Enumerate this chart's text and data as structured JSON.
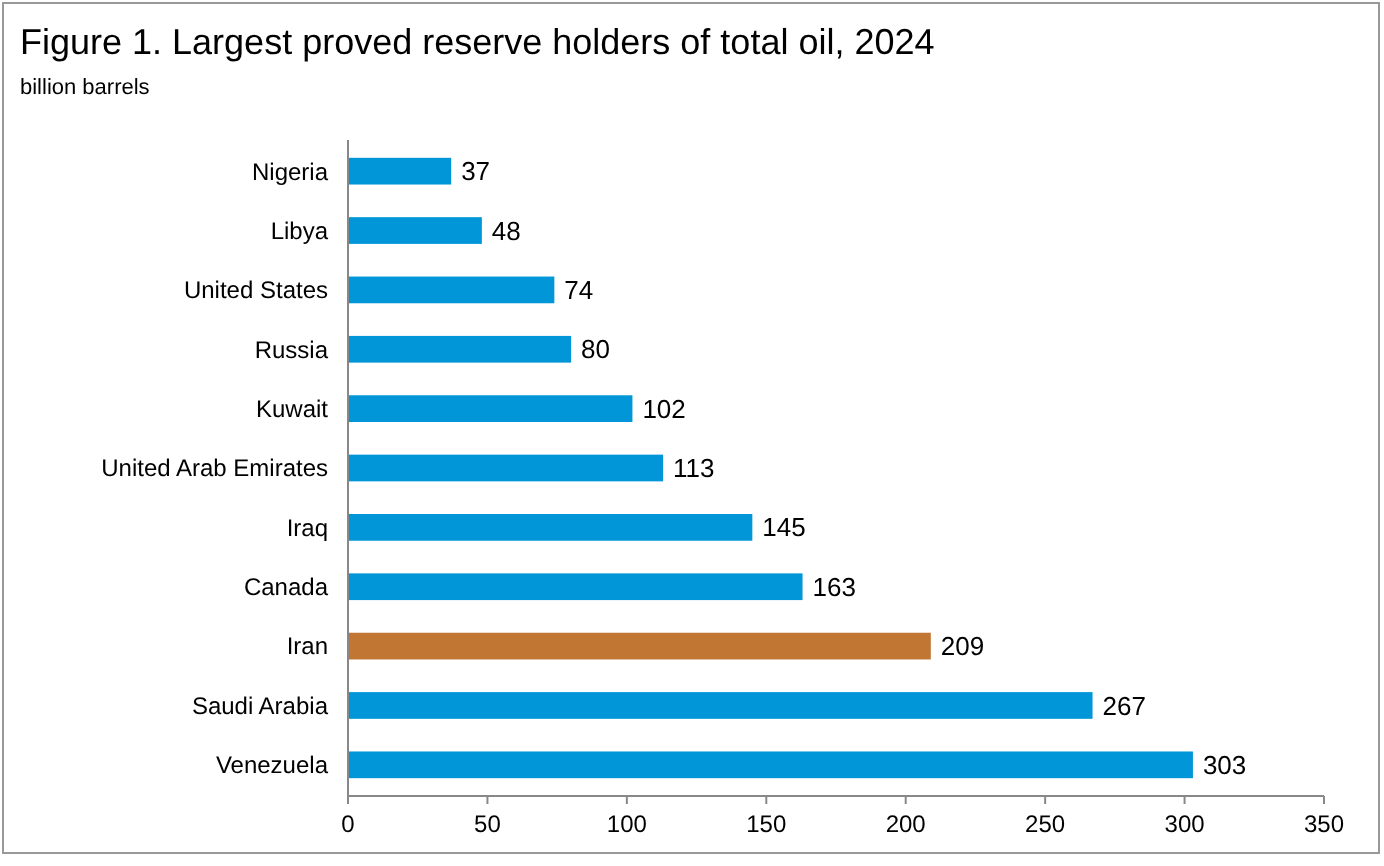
{
  "chart_data": {
    "type": "bar",
    "orientation": "horizontal",
    "title": "Figure 1. Largest proved reserve holders of total oil, 2024",
    "subtitle": "billion barrels",
    "categories": [
      "Nigeria",
      "Libya",
      "United States",
      "Russia",
      "Kuwait",
      "United Arab Emirates",
      "Iraq",
      "Canada",
      "Iran",
      "Saudi Arabia",
      "Venezuela"
    ],
    "values": [
      37,
      48,
      74,
      80,
      102,
      113,
      145,
      163,
      209,
      267,
      303
    ],
    "colors": [
      "#0096d7",
      "#0096d7",
      "#0096d7",
      "#0096d7",
      "#0096d7",
      "#0096d7",
      "#0096d7",
      "#0096d7",
      "#c17634",
      "#0096d7",
      "#0096d7"
    ],
    "xlim": [
      0,
      350
    ],
    "xticks": [
      0,
      50,
      100,
      150,
      200,
      250,
      300,
      350
    ],
    "data_labels": true
  }
}
